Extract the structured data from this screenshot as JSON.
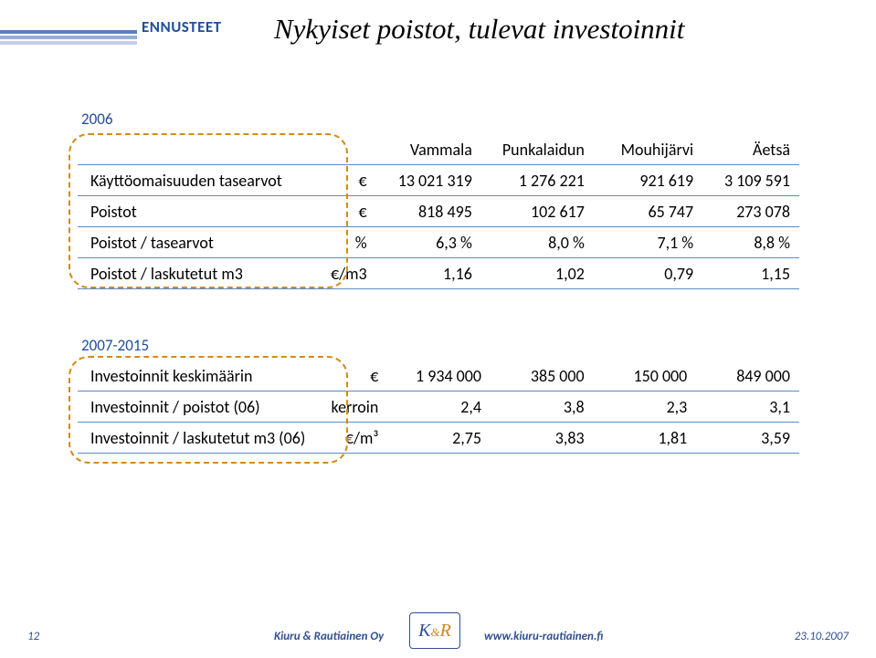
{
  "colors": {
    "header_label": "#1f4e9c",
    "stripes": [
      "#5b7fbf",
      "#98acd6",
      "#c4cee7"
    ],
    "table_border": "#5a8ac6",
    "dash_border": "#d38a15",
    "year_label": "#1f4e9c",
    "footer": "#305090",
    "logo_accent": "#d0861b"
  },
  "header": {
    "section_label": "ENNUSTEET",
    "title": "Nykyiset poistot, tulevat investoinnit"
  },
  "tables": {
    "t1": {
      "year": "2006",
      "columns": [
        "Vammala",
        "Punkalaidun",
        "Mouhijärvi",
        "Äetsä"
      ],
      "rows": [
        {
          "label": "Käyttöomaisuuden tasearvot",
          "unit": "€",
          "vals": [
            "13 021 319",
            "1 276 221",
            "921 619",
            "3 109 591"
          ]
        },
        {
          "label": "Poistot",
          "unit": "€",
          "vals": [
            "818 495",
            "102 617",
            "65 747",
            "273 078"
          ]
        },
        {
          "label": "Poistot / tasearvot",
          "unit": "%",
          "vals": [
            "6,3 %",
            "8,0 %",
            "7,1 %",
            "8,8 %"
          ]
        },
        {
          "label": "Poistot / laskutetut m3",
          "unit": "€/m3",
          "vals": [
            "1,16",
            "1,02",
            "0,79",
            "1,15"
          ]
        }
      ]
    },
    "t2": {
      "year": "2007-2015",
      "rows": [
        {
          "label": "Investoinnit keskimäärin",
          "unit": "€",
          "vals": [
            "1 934 000",
            "385 000",
            "150 000",
            "849 000"
          ]
        },
        {
          "label": "Investoinnit / poistot (06)",
          "unit": "kerroin",
          "vals": [
            "2,4",
            "3,8",
            "2,3",
            "3,1"
          ]
        },
        {
          "label": "Investoinnit / laskutetut m3 (06)",
          "unit": "€/m³",
          "vals": [
            "2,75",
            "3,83",
            "1,81",
            "3,59"
          ]
        }
      ]
    }
  },
  "footer": {
    "page": "12",
    "company": "Kiuru & Rautiainen Oy",
    "logo": {
      "k": "K",
      "amp": "&",
      "r": "R"
    },
    "url": "www.kiuru-rautiainen.fi",
    "date": "23.10.2007"
  }
}
